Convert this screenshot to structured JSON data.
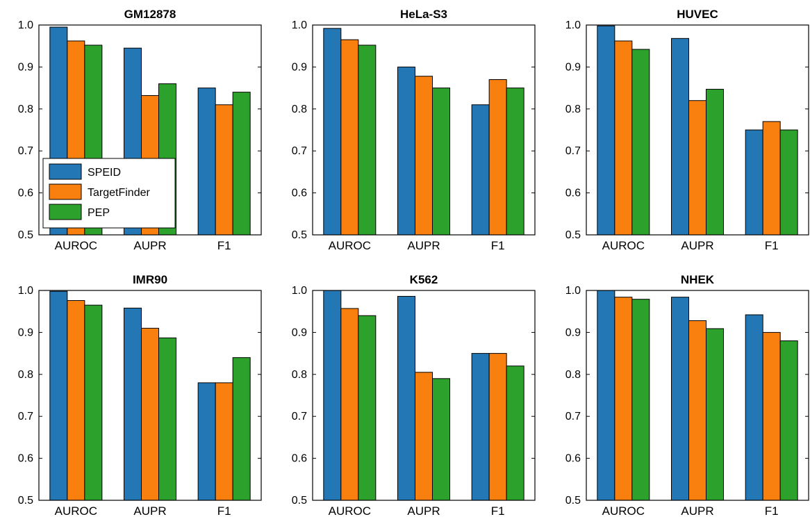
{
  "colors": {
    "SPEID": "#2477b5",
    "TargetFinder": "#f97f0e",
    "PEP": "#2ca12c"
  },
  "legend": {
    "entries": [
      "SPEID",
      "TargetFinder",
      "PEP"
    ],
    "placement": "lower-left of first panel"
  },
  "chart_data": [
    {
      "type": "bar",
      "title": "GM12878",
      "categories": [
        "AUROC",
        "AUPR",
        "F1"
      ],
      "ylim": [
        0.5,
        1.0
      ],
      "yticks": [
        "0.5",
        "0.6",
        "0.7",
        "0.8",
        "0.9",
        "1.0"
      ],
      "grid": false,
      "series": [
        {
          "name": "SPEID",
          "values": [
            0.995,
            0.945,
            0.85
          ]
        },
        {
          "name": "TargetFinder",
          "values": [
            0.962,
            0.832,
            0.81
          ]
        },
        {
          "name": "PEP",
          "values": [
            0.952,
            0.86,
            0.84
          ]
        }
      ]
    },
    {
      "type": "bar",
      "title": "HeLa-S3",
      "categories": [
        "AUROC",
        "AUPR",
        "F1"
      ],
      "ylim": [
        0.5,
        1.0
      ],
      "yticks": [
        "0.5",
        "0.6",
        "0.7",
        "0.8",
        "0.9",
        "1.0"
      ],
      "grid": false,
      "series": [
        {
          "name": "SPEID",
          "values": [
            0.992,
            0.9,
            0.81
          ]
        },
        {
          "name": "TargetFinder",
          "values": [
            0.965,
            0.878,
            0.87
          ]
        },
        {
          "name": "PEP",
          "values": [
            0.952,
            0.85,
            0.85
          ]
        }
      ]
    },
    {
      "type": "bar",
      "title": "HUVEC",
      "categories": [
        "AUROC",
        "AUPR",
        "F1"
      ],
      "ylim": [
        0.5,
        1.0
      ],
      "yticks": [
        "0.5",
        "0.6",
        "0.7",
        "0.8",
        "0.9",
        "1.0"
      ],
      "grid": false,
      "series": [
        {
          "name": "SPEID",
          "values": [
            0.998,
            0.968,
            0.75
          ]
        },
        {
          "name": "TargetFinder",
          "values": [
            0.962,
            0.82,
            0.77
          ]
        },
        {
          "name": "PEP",
          "values": [
            0.942,
            0.847,
            0.75
          ]
        }
      ]
    },
    {
      "type": "bar",
      "title": "IMR90",
      "categories": [
        "AUROC",
        "AUPR",
        "F1"
      ],
      "ylim": [
        0.5,
        1.0
      ],
      "yticks": [
        "0.5",
        "0.6",
        "0.7",
        "0.8",
        "0.9",
        "1.0"
      ],
      "grid": false,
      "series": [
        {
          "name": "SPEID",
          "values": [
            0.998,
            0.958,
            0.78
          ]
        },
        {
          "name": "TargetFinder",
          "values": [
            0.976,
            0.91,
            0.78
          ]
        },
        {
          "name": "PEP",
          "values": [
            0.965,
            0.887,
            0.84
          ]
        }
      ]
    },
    {
      "type": "bar",
      "title": "K562",
      "categories": [
        "AUROC",
        "AUPR",
        "F1"
      ],
      "ylim": [
        0.5,
        1.0
      ],
      "yticks": [
        "0.5",
        "0.6",
        "0.7",
        "0.8",
        "0.9",
        "1.0"
      ],
      "grid": false,
      "series": [
        {
          "name": "SPEID",
          "values": [
            1.0,
            0.986,
            0.85
          ]
        },
        {
          "name": "TargetFinder",
          "values": [
            0.957,
            0.805,
            0.85
          ]
        },
        {
          "name": "PEP",
          "values": [
            0.94,
            0.79,
            0.82
          ]
        }
      ]
    },
    {
      "type": "bar",
      "title": "NHEK",
      "categories": [
        "AUROC",
        "AUPR",
        "F1"
      ],
      "ylim": [
        0.5,
        1.0
      ],
      "yticks": [
        "0.5",
        "0.6",
        "0.7",
        "0.8",
        "0.9",
        "1.0"
      ],
      "grid": false,
      "series": [
        {
          "name": "SPEID",
          "values": [
            1.0,
            0.984,
            0.942
          ]
        },
        {
          "name": "TargetFinder",
          "values": [
            0.984,
            0.928,
            0.9
          ]
        },
        {
          "name": "PEP",
          "values": [
            0.979,
            0.909,
            0.88
          ]
        }
      ]
    }
  ]
}
